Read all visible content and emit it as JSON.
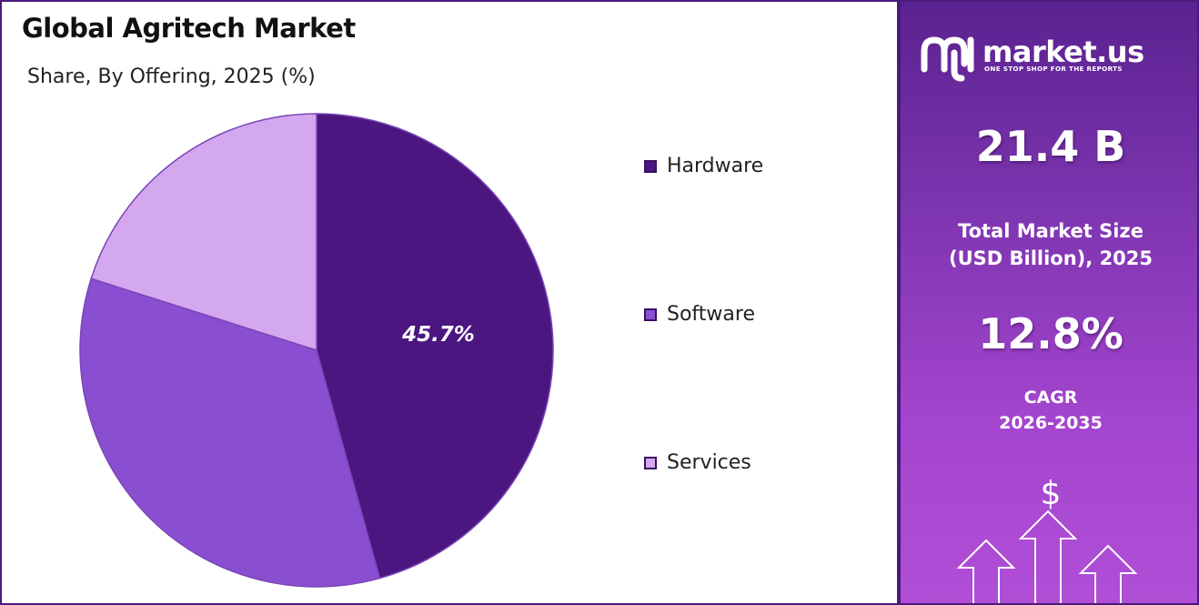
{
  "header": {
    "title": "Global Agritech Market",
    "subtitle": "Share, By Offering, 2025 (%)"
  },
  "chart_data": {
    "type": "pie",
    "categories": [
      "Hardware",
      "Software",
      "Services"
    ],
    "values": [
      45.7,
      34.2,
      20.1
    ],
    "data_labels": [
      "45.7%",
      "",
      ""
    ],
    "colors": [
      "#4b1680",
      "#8a4fd1",
      "#d4a8ee"
    ],
    "legend_position": "right"
  },
  "sidebar": {
    "brand": {
      "name": "market.us",
      "tagline": "ONE STOP SHOP FOR THE REPORTS"
    },
    "market_size": {
      "value": "21.4 B",
      "label_line1": "Total Market Size",
      "label_line2": "(USD Billion), 2025"
    },
    "cagr": {
      "value": "12.8%",
      "label_line1": "CAGR",
      "label_line2": "2026-2035"
    },
    "currency_symbol": "$"
  }
}
